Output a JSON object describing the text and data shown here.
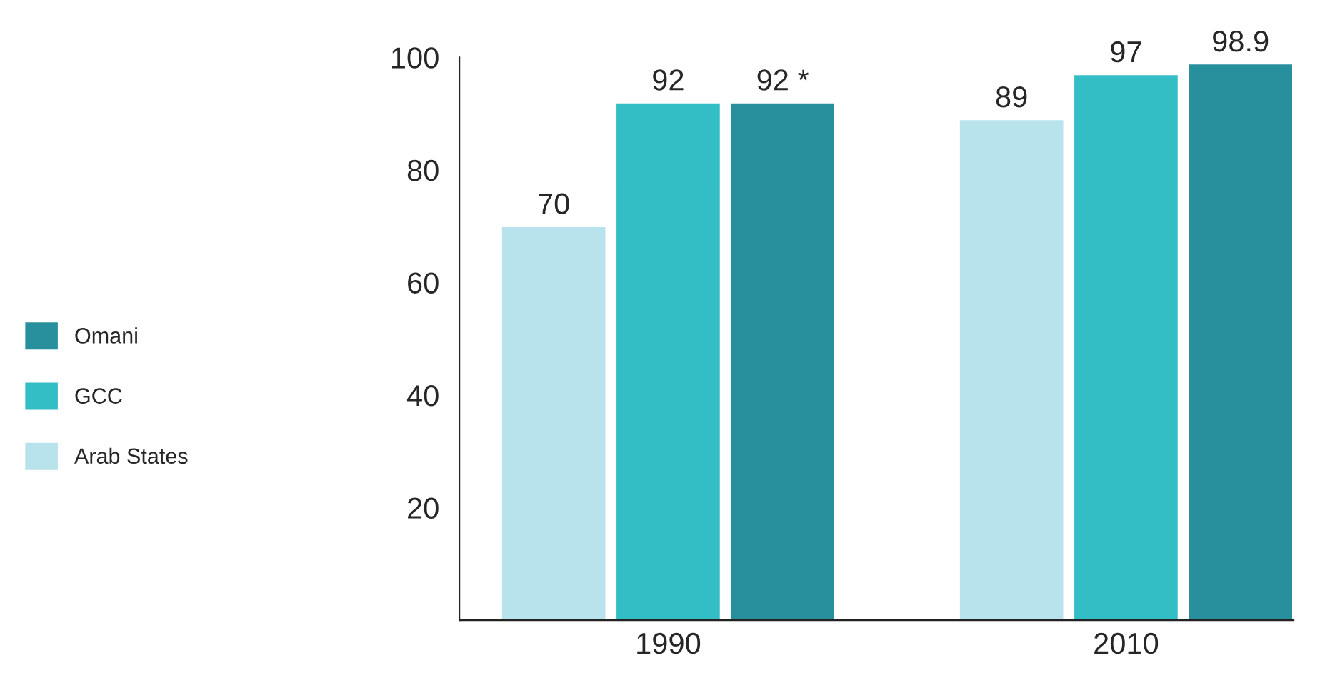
{
  "chart_data": {
    "type": "bar",
    "categories": [
      "1990",
      "2010"
    ],
    "series": [
      {
        "name": "Arab States",
        "color": "#b8e2ec",
        "values": [
          70,
          89
        ],
        "value_labels": [
          "70",
          "89"
        ]
      },
      {
        "name": "GCC",
        "color": "#33bec6",
        "values": [
          92,
          97
        ],
        "value_labels": [
          "92",
          "97"
        ]
      },
      {
        "name": "Omani",
        "color": "#28909c",
        "values": [
          92,
          98.9
        ],
        "value_labels": [
          "92 *",
          "98.9"
        ]
      }
    ],
    "ylim": [
      0,
      100
    ],
    "yticks": [
      20,
      40,
      60,
      80,
      100
    ],
    "grid": false,
    "legend": "left"
  }
}
